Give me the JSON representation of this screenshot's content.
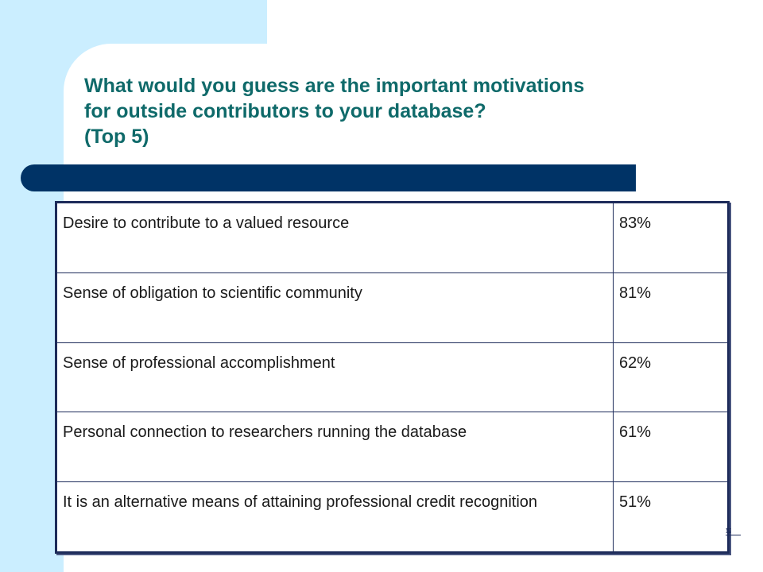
{
  "slide": {
    "title_lines": [
      "What would you guess are the important motivations",
      "for outside contributors to your database?",
      "(Top 5)"
    ],
    "footnote_mark": "N",
    "rows": [
      {
        "label": "Desire to contribute to a valued resource",
        "value": "83%"
      },
      {
        "label": "Sense of obligation to scientific community",
        "value": "81%"
      },
      {
        "label": "Sense of professional accomplishment",
        "value": "62%"
      },
      {
        "label": "Personal connection to researchers running the database",
        "value": "61%"
      },
      {
        "label": " It is an alternative means of attaining professional credit recognition",
        "value": "51%"
      }
    ],
    "colors": {
      "title": "#0f6a6a",
      "accent_bar": "#003366",
      "background_tint": "#cbeeff",
      "table_border": "#1d2b5a"
    }
  }
}
